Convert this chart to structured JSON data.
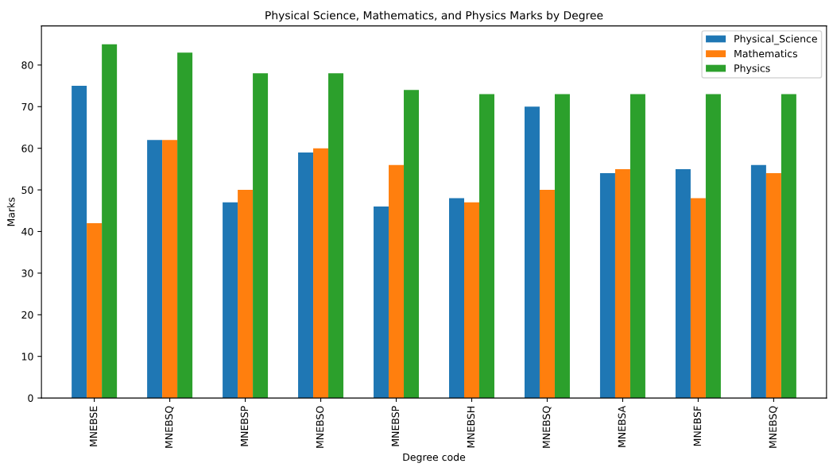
{
  "chart_data": {
    "type": "bar",
    "title": "Physical Science, Mathematics, and Physics Marks by Degree",
    "xlabel": "Degree code",
    "ylabel": "Marks",
    "categories": [
      "MNEBSE",
      "MNEBSQ",
      "MNEBSP",
      "MNEBSO",
      "MNEBSP",
      "MNEBSH",
      "MNEBSQ",
      "MNEBSA",
      "MNEBSF",
      "MNEBSQ"
    ],
    "series": [
      {
        "name": "Physical_Science",
        "color": "#1f77b4",
        "values": [
          75,
          62,
          47,
          59,
          46,
          48,
          70,
          54,
          55,
          56
        ]
      },
      {
        "name": "Mathematics",
        "color": "#ff7f0e",
        "values": [
          42,
          62,
          50,
          60,
          56,
          47,
          50,
          55,
          48,
          54
        ]
      },
      {
        "name": "Physics",
        "color": "#2ca02c",
        "values": [
          85,
          83,
          78,
          78,
          74,
          73,
          73,
          73,
          73,
          73
        ]
      }
    ],
    "ylim": [
      0,
      89.4
    ],
    "yticks": [
      0,
      10,
      20,
      30,
      40,
      50,
      60,
      70,
      80
    ],
    "grid": false,
    "legend": "top right"
  }
}
